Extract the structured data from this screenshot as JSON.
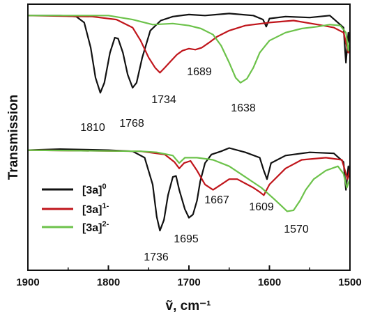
{
  "chart_data": {
    "type": "line",
    "xlabel": "ṽ, cm⁻¹",
    "ylabel": "Transmission",
    "xlim": [
      1900,
      1500
    ],
    "xticks": [
      1900,
      1800,
      1700,
      1600,
      1500
    ],
    "x_reversed": true,
    "grid": false,
    "legend": {
      "placement": "lower-left",
      "entries": [
        {
          "base": "[3a]",
          "sup": "0",
          "color": "#111111"
        },
        {
          "base": "[3a]",
          "sup": "1-",
          "color": "#c0151b"
        },
        {
          "base": "[3a]",
          "sup": "2-",
          "color": "#6cc24a"
        }
      ]
    },
    "panels": [
      {
        "name": "upper",
        "series": [
          {
            "color": "#111111",
            "x": [
              1900,
              1860,
              1840,
              1830,
              1822,
              1816,
              1810,
              1805,
              1798,
              1792,
              1788,
              1782,
              1776,
              1770,
              1765,
              1758,
              1748,
              1735,
              1720,
              1700,
              1680,
              1650,
              1620,
              1608,
              1604,
              1600,
              1580,
              1550,
              1525,
              1515,
              1508,
              1505,
              1502,
              1500
            ],
            "y": [
              0.97,
              0.97,
              0.96,
              0.9,
              0.65,
              0.35,
              0.2,
              0.3,
              0.6,
              0.75,
              0.74,
              0.6,
              0.38,
              0.25,
              0.3,
              0.55,
              0.82,
              0.92,
              0.96,
              0.98,
              0.97,
              0.99,
              0.97,
              0.93,
              0.86,
              0.94,
              0.96,
              0.95,
              0.97,
              0.9,
              0.85,
              0.5,
              0.8,
              0.65
            ]
          },
          {
            "color": "#c0151b",
            "x": [
              1900,
              1820,
              1790,
              1770,
              1760,
              1750,
              1742,
              1736,
              1730,
              1722,
              1715,
              1708,
              1700,
              1692,
              1684,
              1675,
              1665,
              1650,
              1630,
              1600,
              1570,
              1540,
              1520,
              1508,
              1502,
              1500
            ],
            "y": [
              0.97,
              0.96,
              0.93,
              0.85,
              0.72,
              0.55,
              0.45,
              0.4,
              0.45,
              0.52,
              0.58,
              0.62,
              0.64,
              0.63,
              0.65,
              0.7,
              0.76,
              0.82,
              0.87,
              0.9,
              0.92,
              0.88,
              0.85,
              0.8,
              0.6,
              0.7
            ]
          },
          {
            "color": "#6cc24a",
            "x": [
              1900,
              1800,
              1770,
              1745,
              1720,
              1700,
              1685,
              1670,
              1660,
              1650,
              1642,
              1636,
              1628,
              1620,
              1612,
              1600,
              1580,
              1560,
              1540,
              1525,
              1512,
              1505,
              1502,
              1500
            ],
            "y": [
              0.97,
              0.97,
              0.93,
              0.88,
              0.89,
              0.87,
              0.84,
              0.78,
              0.67,
              0.5,
              0.35,
              0.3,
              0.34,
              0.45,
              0.6,
              0.72,
              0.8,
              0.84,
              0.86,
              0.88,
              0.87,
              0.8,
              0.62,
              0.72
            ]
          }
        ]
      },
      {
        "name": "lower",
        "series": [
          {
            "color": "#111111",
            "x": [
              1900,
              1860,
              1800,
              1770,
              1755,
              1745,
              1740,
              1736,
              1731,
              1726,
              1720,
              1716,
              1712,
              1705,
              1700,
              1695,
              1690,
              1686,
              1680,
              1672,
              1660,
              1650,
              1630,
              1612,
              1607,
              1603,
              1598,
              1580,
              1550,
              1520,
              1508,
              1505,
              1502,
              1500
            ],
            "y": [
              0.97,
              0.98,
              0.97,
              0.96,
              0.9,
              0.65,
              0.35,
              0.22,
              0.32,
              0.55,
              0.72,
              0.73,
              0.6,
              0.42,
              0.34,
              0.37,
              0.5,
              0.68,
              0.85,
              0.93,
              0.96,
              0.99,
              0.95,
              0.9,
              0.78,
              0.7,
              0.85,
              0.92,
              0.95,
              0.94,
              0.86,
              0.6,
              0.82,
              0.7
            ]
          },
          {
            "color": "#c0151b",
            "x": [
              1900,
              1760,
              1730,
              1718,
              1712,
              1706,
              1698,
              1690,
              1680,
              1670,
              1660,
              1650,
              1640,
              1630,
              1620,
              1612,
              1607,
              1600,
              1580,
              1560,
              1530,
              1510,
              1503,
              1500
            ],
            "y": [
              0.97,
              0.96,
              0.93,
              0.86,
              0.8,
              0.85,
              0.87,
              0.78,
              0.65,
              0.6,
              0.65,
              0.7,
              0.7,
              0.66,
              0.62,
              0.58,
              0.55,
              0.65,
              0.8,
              0.88,
              0.9,
              0.88,
              0.7,
              0.8
            ]
          },
          {
            "color": "#6cc24a",
            "x": [
              1900,
              1760,
              1740,
              1720,
              1712,
              1705,
              1690,
              1670,
              1650,
              1630,
              1610,
              1595,
              1585,
              1578,
              1570,
              1562,
              1555,
              1545,
              1530,
              1515,
              1508,
              1504,
              1500
            ],
            "y": [
              0.97,
              0.96,
              0.95,
              0.92,
              0.85,
              0.9,
              0.9,
              0.88,
              0.82,
              0.72,
              0.62,
              0.52,
              0.45,
              0.4,
              0.41,
              0.5,
              0.6,
              0.7,
              0.78,
              0.82,
              0.75,
              0.62,
              0.7
            ]
          }
        ]
      }
    ],
    "annotations": [
      {
        "text": "1810",
        "x": 1810,
        "panel": "upper"
      },
      {
        "text": "1768",
        "x": 1768,
        "panel": "upper"
      },
      {
        "text": "1734",
        "x": 1734,
        "panel": "upper"
      },
      {
        "text": "1689",
        "x": 1689,
        "panel": "upper"
      },
      {
        "text": "1638",
        "x": 1638,
        "panel": "upper"
      },
      {
        "text": "1667",
        "x": 1667,
        "panel": "lower"
      },
      {
        "text": "1609",
        "x": 1609,
        "panel": "lower"
      },
      {
        "text": "1736",
        "x": 1736,
        "panel": "lower"
      },
      {
        "text": "1695",
        "x": 1695,
        "panel": "lower"
      },
      {
        "text": "1570",
        "x": 1570,
        "panel": "lower"
      }
    ]
  }
}
